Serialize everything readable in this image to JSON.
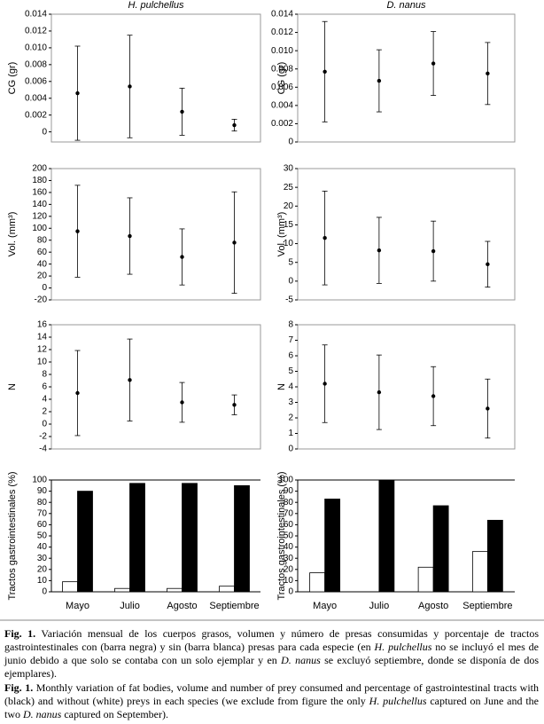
{
  "chart_data": [
    {
      "type": "errorbar",
      "title": "H. pulchellus",
      "ylabel": "CG (gr)",
      "values": [
        0.0046,
        0.0054,
        0.0024,
        0.0008
      ],
      "errors": [
        0.0056,
        0.0061,
        0.0028,
        0.0007
      ],
      "ylim": [
        -0.0012,
        0.014
      ],
      "yticks": [
        0,
        0.002,
        0.004,
        0.006,
        0.008,
        {
          "value": 0.01,
          "label": "0.010"
        },
        0.012,
        0.014
      ]
    },
    {
      "type": "errorbar",
      "title": "D. nanus",
      "ylabel": "CG (gr)",
      "values": [
        0.0077,
        0.0067,
        0.0086,
        0.0075
      ],
      "errors": [
        0.0055,
        0.0034,
        0.0035,
        0.0034
      ],
      "ylim": [
        0,
        0.014
      ],
      "yticks": [
        0,
        0.002,
        0.004,
        0.006,
        0.008,
        {
          "value": 0.01,
          "label": "0.010"
        },
        0.012,
        0.014
      ]
    },
    {
      "type": "errorbar",
      "ylabel": "Vol. (mm³)",
      "values": [
        95,
        87,
        52,
        76
      ],
      "errors": [
        77,
        64,
        47,
        85
      ],
      "ylim": [
        -20,
        200
      ],
      "yticks": [
        -20,
        0,
        20,
        40,
        60,
        80,
        100,
        120,
        140,
        160,
        180,
        200
      ]
    },
    {
      "type": "errorbar",
      "ylabel": "Vol. (mm³)",
      "values": [
        11.5,
        8.2,
        8,
        4.5
      ],
      "errors": [
        12.5,
        8.8,
        8,
        6.1
      ],
      "ylim": [
        -5,
        30
      ],
      "yticks": [
        -5,
        0,
        5,
        10,
        15,
        20,
        25,
        30
      ]
    },
    {
      "type": "errorbar",
      "ylabel": "N",
      "values": [
        5,
        7.1,
        3.5,
        3.1
      ],
      "errors": [
        6.85,
        6.6,
        3.2,
        1.6
      ],
      "ylim": [
        -4,
        16
      ],
      "yticks": [
        -4,
        -2,
        0,
        2,
        4,
        6,
        8,
        10,
        12,
        14,
        16
      ]
    },
    {
      "type": "errorbar",
      "ylabel": "N",
      "values": [
        4.2,
        3.65,
        3.4,
        2.6
      ],
      "errors": [
        2.5,
        2.4,
        1.9,
        1.9
      ],
      "ylim": [
        0,
        8
      ],
      "yticks": [
        0,
        1,
        2,
        3,
        4,
        5,
        6,
        7,
        8
      ]
    },
    {
      "type": "bar",
      "ylabel": "Tractos gastrointestinales (%)",
      "categories": [
        "Mayo",
        "Julio",
        "Agosto",
        "Septiembre"
      ],
      "series": [
        {
          "color": "#ffffff",
          "values": [
            9,
            3,
            3,
            5
          ]
        },
        {
          "color": "#000000",
          "values": [
            90,
            97,
            97,
            95
          ]
        }
      ],
      "ylim": [
        0,
        100
      ],
      "yticks": [
        0,
        10,
        20,
        30,
        40,
        50,
        60,
        70,
        80,
        90,
        100
      ]
    },
    {
      "type": "bar",
      "ylabel": "Tractos gastrointestinales (%)",
      "categories": [
        "Mayo",
        "Julio",
        "Agosto",
        "Septiembre"
      ],
      "series": [
        {
          "color": "#ffffff",
          "values": [
            17,
            0,
            22,
            36
          ]
        },
        {
          "color": "#000000",
          "values": [
            83,
            100,
            77,
            64
          ]
        }
      ],
      "ylim": [
        0,
        100
      ],
      "yticks": [
        0,
        10,
        20,
        30,
        40,
        50,
        60,
        70,
        80,
        90,
        100
      ]
    }
  ],
  "caption": {
    "spanish": [
      "Fig. 1.",
      " Variación mensual de los cuerpos grasos, volumen y número de presas consumidas y porcentaje de tractos gastrointestinales con (barra negra) y sin (barra blanca) presas para cada especie (en ",
      "H. pulchellus",
      " no se incluyó el mes de junio debido a que solo se contaba con un solo ejemplar y en ",
      "D. nanus",
      " se excluyó septiembre, donde se disponía de dos ejemplares)."
    ],
    "english": [
      "Fig. 1.",
      " Monthly variation of fat bodies, volume and number of prey consumed and percentage of gastrointestinal tracts with (black) and without (white) preys in each species (we exclude from figure the only ",
      "H. pulchellus",
      " captured on June and the two ",
      "D. nanus",
      " captured on September)."
    ]
  }
}
